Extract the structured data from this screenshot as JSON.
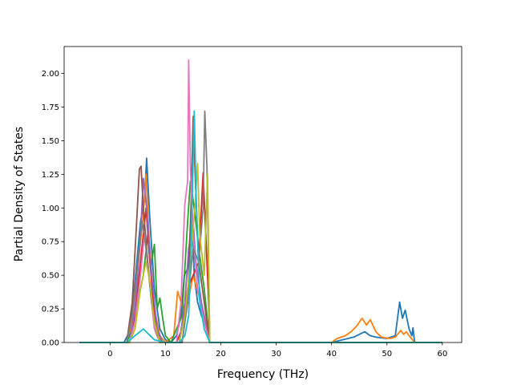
{
  "chart_data": {
    "type": "line",
    "title": "",
    "xlabel": "Frequency (THz)",
    "ylabel": "Partial Density of States",
    "xlim": [
      -8.3,
      63.5
    ],
    "ylim": [
      0,
      2.2
    ],
    "xticks": [
      0,
      10,
      20,
      30,
      40,
      50,
      60
    ],
    "xtick_labels": [
      "0",
      "10",
      "20",
      "30",
      "40",
      "50",
      "60"
    ],
    "yticks": [
      0,
      0.25,
      0.5,
      0.75,
      1.0,
      1.25,
      1.5,
      1.75,
      2.0
    ],
    "ytick_labels": [
      "0.00",
      "0.25",
      "0.50",
      "0.75",
      "1.00",
      "1.25",
      "1.50",
      "1.75",
      "2.00"
    ],
    "grid": false,
    "legend": "none",
    "series": [
      {
        "color": "#1f77b4",
        "points": [
          [
            -5.5,
            0
          ],
          [
            2.5,
            0
          ],
          [
            3.5,
            0.08
          ],
          [
            4.5,
            0.45
          ],
          [
            5.5,
            0.9
          ],
          [
            6.2,
            1.05
          ],
          [
            6.6,
            1.37
          ],
          [
            7.2,
            0.9
          ],
          [
            8,
            0.4
          ],
          [
            9,
            0.1
          ],
          [
            10,
            0.02
          ],
          [
            11,
            0
          ],
          [
            12,
            0.05
          ],
          [
            12.8,
            0.2
          ],
          [
            13.4,
            0.5
          ],
          [
            14,
            0.55
          ],
          [
            14.8,
            1.0
          ],
          [
            15.2,
            0.5
          ],
          [
            15.8,
            0.3
          ],
          [
            16.5,
            0.2
          ],
          [
            17.5,
            0.1
          ],
          [
            18,
            0
          ],
          [
            40,
            0
          ],
          [
            42,
            0.02
          ],
          [
            44,
            0.04
          ],
          [
            45,
            0.06
          ],
          [
            46,
            0.08
          ],
          [
            47,
            0.05
          ],
          [
            48,
            0.04
          ],
          [
            50,
            0.03
          ],
          [
            51.5,
            0.05
          ],
          [
            52.3,
            0.3
          ],
          [
            52.8,
            0.18
          ],
          [
            53.3,
            0.24
          ],
          [
            54,
            0.1
          ],
          [
            54.5,
            0.05
          ],
          [
            54.7,
            0.11
          ],
          [
            55,
            0
          ],
          [
            60,
            0
          ]
        ]
      },
      {
        "color": "#ff7f0e",
        "points": [
          [
            -5.5,
            0
          ],
          [
            3,
            0
          ],
          [
            4,
            0.15
          ],
          [
            5,
            0.55
          ],
          [
            6,
            0.95
          ],
          [
            6.5,
            1.25
          ],
          [
            7,
            0.8
          ],
          [
            8,
            0.25
          ],
          [
            9,
            0.05
          ],
          [
            10,
            0
          ],
          [
            11.5,
            0.05
          ],
          [
            12.2,
            0.38
          ],
          [
            12.8,
            0.3
          ],
          [
            13.5,
            0.22
          ],
          [
            14.3,
            0.35
          ],
          [
            15,
            0.5
          ],
          [
            16,
            0.35
          ],
          [
            17,
            0.2
          ],
          [
            18,
            0
          ],
          [
            40,
            0
          ],
          [
            41,
            0.03
          ],
          [
            42.5,
            0.05
          ],
          [
            43.5,
            0.08
          ],
          [
            44.5,
            0.12
          ],
          [
            45.5,
            0.18
          ],
          [
            46.3,
            0.13
          ],
          [
            47,
            0.17
          ],
          [
            48,
            0.08
          ],
          [
            49,
            0.04
          ],
          [
            50.5,
            0.03
          ],
          [
            51.5,
            0.04
          ],
          [
            52.5,
            0.09
          ],
          [
            53,
            0.06
          ],
          [
            53.5,
            0.08
          ],
          [
            54,
            0.05
          ],
          [
            55,
            0
          ],
          [
            60,
            0
          ]
        ]
      },
      {
        "color": "#2ca02c",
        "points": [
          [
            -5.5,
            0
          ],
          [
            3,
            0
          ],
          [
            4,
            0.1
          ],
          [
            5,
            0.3
          ],
          [
            6,
            0.5
          ],
          [
            6.8,
            0.8
          ],
          [
            7.3,
            0.55
          ],
          [
            8,
            0.73
          ],
          [
            8.5,
            0.25
          ],
          [
            9,
            0.33
          ],
          [
            9.5,
            0.18
          ],
          [
            10,
            0.05
          ],
          [
            11,
            0
          ],
          [
            13,
            0.2
          ],
          [
            14,
            0.9
          ],
          [
            14.5,
            1.2
          ],
          [
            15.2,
            1.0
          ],
          [
            16,
            0.7
          ],
          [
            17,
            0.4
          ],
          [
            18,
            0
          ],
          [
            60,
            0
          ]
        ]
      },
      {
        "color": "#d62728",
        "points": [
          [
            -5.5,
            0
          ],
          [
            3.5,
            0
          ],
          [
            4.5,
            0.2
          ],
          [
            5.5,
            0.6
          ],
          [
            6.5,
            1.0
          ],
          [
            7,
            0.7
          ],
          [
            8,
            0.2
          ],
          [
            9,
            0
          ],
          [
            12,
            0
          ],
          [
            13,
            0.1
          ],
          [
            14,
            0.4
          ],
          [
            15,
            0.5
          ],
          [
            16,
            0.6
          ],
          [
            16.8,
            1.26
          ],
          [
            17.3,
            0.8
          ],
          [
            17.8,
            0.3
          ],
          [
            18,
            0
          ],
          [
            60,
            0
          ]
        ]
      },
      {
        "color": "#9467bd",
        "points": [
          [
            -5.5,
            0
          ],
          [
            3.5,
            0
          ],
          [
            4.5,
            0.25
          ],
          [
            5.5,
            0.8
          ],
          [
            6,
            1.22
          ],
          [
            6.6,
            1.0
          ],
          [
            7.5,
            0.5
          ],
          [
            8.5,
            0.1
          ],
          [
            9.5,
            0
          ],
          [
            12.5,
            0
          ],
          [
            13.5,
            0.3
          ],
          [
            14.2,
            0.7
          ],
          [
            15,
            0.9
          ],
          [
            15.5,
            0.6
          ],
          [
            16.5,
            0.3
          ],
          [
            17.5,
            0.1
          ],
          [
            18,
            0
          ],
          [
            60,
            0
          ]
        ]
      },
      {
        "color": "#8c564b",
        "points": [
          [
            -5.5,
            0
          ],
          [
            3,
            0
          ],
          [
            4,
            0.3
          ],
          [
            4.8,
            0.9
          ],
          [
            5.3,
            1.29
          ],
          [
            5.6,
            1.31
          ],
          [
            6,
            1.0
          ],
          [
            6.8,
            0.6
          ],
          [
            7.5,
            0.3
          ],
          [
            8.5,
            0.05
          ],
          [
            9.5,
            0
          ],
          [
            13,
            0
          ],
          [
            14,
            0.3
          ],
          [
            14.6,
            1.0
          ],
          [
            15,
            1.68
          ],
          [
            15.4,
            1.2
          ],
          [
            16,
            0.6
          ],
          [
            17,
            0.3
          ],
          [
            18,
            0
          ],
          [
            60,
            0
          ]
        ]
      },
      {
        "color": "#e377c2",
        "points": [
          [
            -5.5,
            0
          ],
          [
            3.5,
            0
          ],
          [
            4.5,
            0.15
          ],
          [
            5.5,
            0.5
          ],
          [
            6.2,
            0.8
          ],
          [
            7,
            0.5
          ],
          [
            8,
            0.1
          ],
          [
            9,
            0
          ],
          [
            12,
            0
          ],
          [
            12.8,
            0.3
          ],
          [
            13.5,
            1.03
          ],
          [
            14,
            1.2
          ],
          [
            14.2,
            2.1
          ],
          [
            14.5,
            1.3
          ],
          [
            15,
            0.8
          ],
          [
            15.8,
            0.4
          ],
          [
            17,
            0.15
          ],
          [
            18,
            0
          ],
          [
            60,
            0
          ]
        ]
      },
      {
        "color": "#7f7f7f",
        "points": [
          [
            -5.5,
            0
          ],
          [
            3,
            0
          ],
          [
            4,
            0.2
          ],
          [
            5,
            0.6
          ],
          [
            5.8,
            0.9
          ],
          [
            6.5,
            0.7
          ],
          [
            7.5,
            0.3
          ],
          [
            8.5,
            0.05
          ],
          [
            9.5,
            0
          ],
          [
            13,
            0
          ],
          [
            14,
            0.3
          ],
          [
            15,
            0.7
          ],
          [
            16,
            0.6
          ],
          [
            16.8,
            1.0
          ],
          [
            17.1,
            1.72
          ],
          [
            17.5,
            1.3
          ],
          [
            18,
            0
          ],
          [
            60,
            0
          ]
        ]
      },
      {
        "color": "#bcbd22",
        "points": [
          [
            -5.5,
            0
          ],
          [
            3.5,
            0
          ],
          [
            4.5,
            0.1
          ],
          [
            5.5,
            0.4
          ],
          [
            6.5,
            0.6
          ],
          [
            7.2,
            0.45
          ],
          [
            8,
            0.15
          ],
          [
            9,
            0
          ],
          [
            12.5,
            0
          ],
          [
            13.5,
            0.2
          ],
          [
            14.5,
            0.6
          ],
          [
            15.3,
            1.0
          ],
          [
            15.8,
            1.33
          ],
          [
            16.2,
            0.8
          ],
          [
            17,
            0.5
          ],
          [
            17.6,
            1.25
          ],
          [
            18,
            0
          ],
          [
            60,
            0
          ]
        ]
      },
      {
        "color": "#17becf",
        "points": [
          [
            -5.5,
            0
          ],
          [
            3,
            0
          ],
          [
            4.5,
            0.05
          ],
          [
            6,
            0.1
          ],
          [
            8,
            0.02
          ],
          [
            10,
            0
          ],
          [
            12.5,
            0
          ],
          [
            13.5,
            0.05
          ],
          [
            14.2,
            0.2
          ],
          [
            14.8,
            1.0
          ],
          [
            15.2,
            1.72
          ],
          [
            15.6,
            1.0
          ],
          [
            16.2,
            0.3
          ],
          [
            17,
            0.1
          ],
          [
            18,
            0
          ],
          [
            60,
            0
          ]
        ]
      }
    ]
  }
}
